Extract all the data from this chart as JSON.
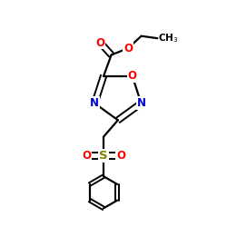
{
  "background_color": "#ffffff",
  "atom_colors": {
    "O": "#ff0000",
    "N": "#0000cc",
    "S": "#808000",
    "C": "#000000"
  },
  "figsize": [
    2.5,
    2.5
  ],
  "dpi": 100,
  "xlim": [
    0,
    10
  ],
  "ylim": [
    0,
    10
  ]
}
